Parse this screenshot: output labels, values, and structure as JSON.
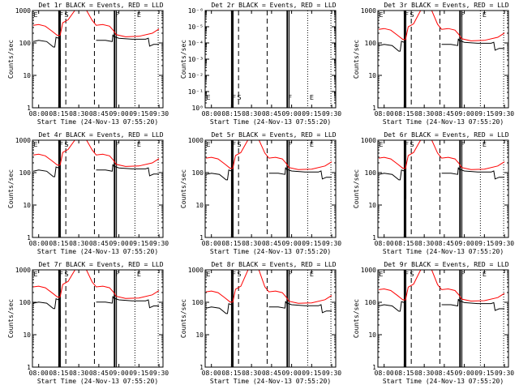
{
  "colors": {
    "events": "#000000",
    "lld": "#ff0000",
    "axis": "#000000",
    "background": "#ffffff"
  },
  "chart_data": {
    "type": "line",
    "layout": "3x3 grid",
    "xlabel": "Start Time (24-Nov-13 07:55:20)",
    "ylabel": "Counts/sec",
    "x_units": "minutes after 08:00",
    "xlim": [
      -4.67,
      93
    ],
    "x_ticks": [
      0,
      15,
      30,
      45,
      60,
      75,
      90
    ],
    "x_tick_labels": [
      "08:00",
      "08:15",
      "08:30",
      "08:45",
      "09:00",
      "09:15",
      "09:30"
    ],
    "y_scale": "log",
    "ylim": [
      1,
      1000
    ],
    "y_ticks": [
      1,
      10,
      100,
      1000
    ],
    "y_tick_labels": [
      "1",
      "10",
      "100",
      "1000"
    ],
    "red_times": [
      -4,
      0,
      5,
      10,
      14,
      16,
      18,
      22,
      28,
      35,
      40,
      43,
      48,
      53,
      56,
      58,
      65,
      75,
      85,
      90
    ],
    "black_times": [
      -4,
      0,
      6,
      11,
      12,
      13,
      15,
      15.5,
      16,
      30,
      43,
      50,
      55,
      55.5,
      56,
      60,
      70,
      80,
      82,
      83,
      86,
      90
    ],
    "markers": [
      {
        "t": 15.3,
        "style": "solid",
        "weight": 2
      },
      {
        "t": 16.3,
        "style": "solid",
        "weight": 1
      },
      {
        "t": 20.3,
        "style": "dashed",
        "weight": 1
      },
      {
        "t": 41.7,
        "style": "dashed",
        "weight": 1
      },
      {
        "t": 56.8,
        "style": "solid",
        "weight": 2
      },
      {
        "t": 58.2,
        "style": "solid",
        "weight": 1
      },
      {
        "t": 72,
        "style": "dotted",
        "weight": 1
      },
      {
        "t": 89.4,
        "style": "dotted",
        "weight": 1
      }
    ],
    "marker_labels": [
      {
        "t": -3.8,
        "text": "E"
      },
      {
        "t": 15.6,
        "text": "F"
      },
      {
        "t": 19.2,
        "text": "S"
      },
      {
        "t": 57.4,
        "text": "F"
      },
      {
        "t": 73.5,
        "text": "E"
      }
    ],
    "panels": [
      {
        "title": "Det 1r BLACK = Events, RED = LLD",
        "empty": false,
        "series": [
          {
            "name": "LLD",
            "color": "red",
            "values": [
              350,
              370,
              330,
              230,
              170,
              170,
              420,
              520,
              1200,
              1200,
              500,
              350,
              370,
              330,
              240,
              180,
              155,
              160,
              200,
              270
            ]
          },
          {
            "name": "Events",
            "color": "black",
            "values": [
              110,
              120,
              110,
              75,
              75,
              150,
              140,
              140,
              20,
              null,
              120,
              120,
              110,
              180,
              160,
              140,
              130,
              130,
              140,
              80,
              90,
              90
            ]
          }
        ]
      },
      {
        "title": "Det 2r BLACK = Events, RED = LLD",
        "empty": true,
        "y_tick_labels": [
          "10⁰",
          "10⁻¹",
          "10⁻²",
          "10⁻³",
          "10⁻⁴",
          "10⁻⁵",
          "10⁻⁶"
        ],
        "series": []
      },
      {
        "title": "Det 3r BLACK = Events, RED = LLD",
        "empty": false,
        "series": [
          {
            "name": "LLD",
            "color": "red",
            "values": [
              263,
              278,
              248,
              173,
              128,
              128,
              315,
              390,
              1200,
              1200,
              375,
              263,
              278,
              248,
              180,
              135,
              116,
              120,
              150,
              203
            ]
          },
          {
            "name": "Events",
            "color": "black",
            "values": [
              83,
              90,
              83,
              56,
              56,
              113,
              105,
              105,
              15,
              null,
              90,
              90,
              83,
              135,
              120,
              105,
              98,
              98,
              105,
              60,
              68,
              68
            ]
          }
        ]
      },
      {
        "title": "Det 4r BLACK = Events, RED = LLD",
        "empty": false,
        "series": [
          {
            "name": "LLD",
            "color": "red",
            "values": [
              350,
              370,
              330,
              230,
              170,
              170,
              420,
              520,
              1200,
              1200,
              500,
              350,
              370,
              330,
              240,
              180,
              155,
              160,
              200,
              270
            ]
          },
          {
            "name": "Events",
            "color": "black",
            "values": [
              110,
              120,
              110,
              75,
              75,
              150,
              140,
              140,
              20,
              null,
              120,
              120,
              110,
              180,
              160,
              140,
              130,
              130,
              140,
              80,
              90,
              90
            ]
          }
        ]
      },
      {
        "title": "Det 5r BLACK = Events, RED = LLD",
        "empty": false,
        "series": [
          {
            "name": "LLD",
            "color": "red",
            "values": [
              280,
              296,
              264,
              184,
              136,
              136,
              336,
              416,
              1200,
              1200,
              400,
              280,
              296,
              264,
              192,
              144,
              124,
              128,
              160,
              216
            ]
          },
          {
            "name": "Events",
            "color": "black",
            "values": [
              88,
              96,
              88,
              60,
              60,
              120,
              112,
              112,
              16,
              null,
              96,
              96,
              88,
              144,
              128,
              112,
              104,
              104,
              112,
              64,
              72,
              72
            ]
          }
        ]
      },
      {
        "title": "Det 6r BLACK = Events, RED = LLD",
        "empty": false,
        "series": [
          {
            "name": "LLD",
            "color": "red",
            "values": [
              280,
              296,
              264,
              184,
              136,
              136,
              336,
              416,
              1200,
              1200,
              400,
              280,
              296,
              264,
              192,
              144,
              124,
              128,
              160,
              216
            ]
          },
          {
            "name": "Events",
            "color": "black",
            "values": [
              88,
              96,
              88,
              60,
              60,
              120,
              112,
              112,
              16,
              null,
              96,
              96,
              88,
              144,
              128,
              112,
              104,
              104,
              112,
              64,
              72,
              72
            ]
          }
        ]
      },
      {
        "title": "Det 7r BLACK = Events, RED = LLD",
        "empty": false,
        "series": [
          {
            "name": "LLD",
            "color": "red",
            "values": [
              298,
              315,
              281,
              196,
              145,
              145,
              357,
              442,
              1200,
              1200,
              425,
              298,
              315,
              281,
              204,
              153,
              132,
              136,
              170,
              230
            ]
          },
          {
            "name": "Events",
            "color": "black",
            "values": [
              94,
              102,
              94,
              64,
              64,
              128,
              119,
              119,
              17,
              null,
              102,
              102,
              94,
              153,
              136,
              119,
              111,
              111,
              119,
              68,
              77,
              77
            ]
          }
        ]
      },
      {
        "title": "Det 8r BLACK = Events, RED = LLD",
        "empty": false,
        "series": [
          {
            "name": "LLD",
            "color": "red",
            "values": [
              210,
              222,
              198,
              138,
              102,
              102,
              252,
              312,
              1200,
              1200,
              300,
              210,
              222,
              198,
              144,
              108,
              93,
              96,
              120,
              162
            ]
          },
          {
            "name": "Events",
            "color": "black",
            "values": [
              66,
              72,
              66,
              45,
              45,
              90,
              84,
              84,
              12,
              null,
              72,
              72,
              66,
              108,
              96,
              84,
              78,
              78,
              84,
              48,
              54,
              54
            ]
          }
        ]
      },
      {
        "title": "Det 9r BLACK = Events, RED = LLD",
        "empty": false,
        "series": [
          {
            "name": "LLD",
            "color": "red",
            "values": [
              245,
              259,
              231,
              161,
              119,
              119,
              294,
              364,
              1200,
              1200,
              350,
              245,
              259,
              231,
              168,
              126,
              109,
              112,
              140,
              189
            ]
          },
          {
            "name": "Events",
            "color": "black",
            "values": [
              77,
              84,
              77,
              53,
              53,
              105,
              98,
              98,
              14,
              null,
              84,
              84,
              77,
              126,
              112,
              98,
              91,
              91,
              98,
              56,
              63,
              63
            ]
          }
        ]
      }
    ]
  }
}
